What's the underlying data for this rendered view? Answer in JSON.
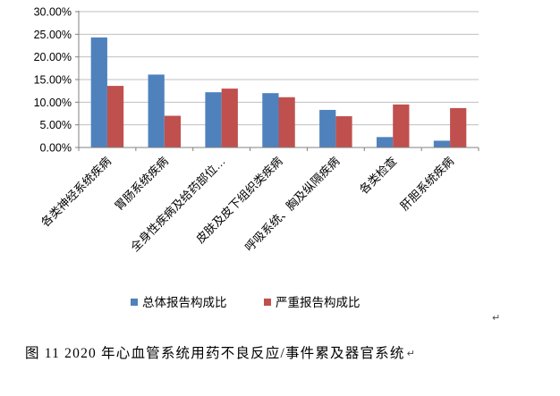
{
  "page": {
    "background_color": "#ffffff",
    "text_color": "#000000"
  },
  "chart_data": {
    "type": "bar",
    "title": "",
    "categories": [
      "各类神经系统疾病",
      "胃肠系统疾病",
      "全身性疾病及给药部位…",
      "皮肤及皮下组织类疾病",
      "呼吸系统、胸及纵隔疾病",
      "各类检查",
      "肝胆系统疾病"
    ],
    "series": [
      {
        "name": "总体报告构成比",
        "color": "#4F81BD",
        "values": [
          24.3,
          16.1,
          12.2,
          12.0,
          8.3,
          2.3,
          1.5
        ]
      },
      {
        "name": "严重报告构成比",
        "color": "#C0504D",
        "values": [
          13.6,
          7.0,
          13.0,
          11.1,
          6.9,
          9.5,
          8.7
        ]
      }
    ],
    "xlabel": "",
    "ylabel": "",
    "ylim": [
      0,
      30
    ],
    "y_tick_step": 5,
    "y_tick_labels": [
      "0.00%",
      "5.00%",
      "10.00%",
      "15.00%",
      "20.00%",
      "25.00%",
      "30.00%"
    ],
    "grid": true,
    "legend_position": "bottom",
    "colors": {
      "gridline": "#BFBFBF",
      "axis": "#808080",
      "tick_text": "#000000",
      "category_text": "#000000",
      "legend_text": "#000000"
    }
  },
  "marks": {
    "after_chart": "↵"
  },
  "caption": {
    "text": "图 11  2020 年心血管系统用药不良反应/事件累及器官系统",
    "paragraph_mark": "↵"
  }
}
